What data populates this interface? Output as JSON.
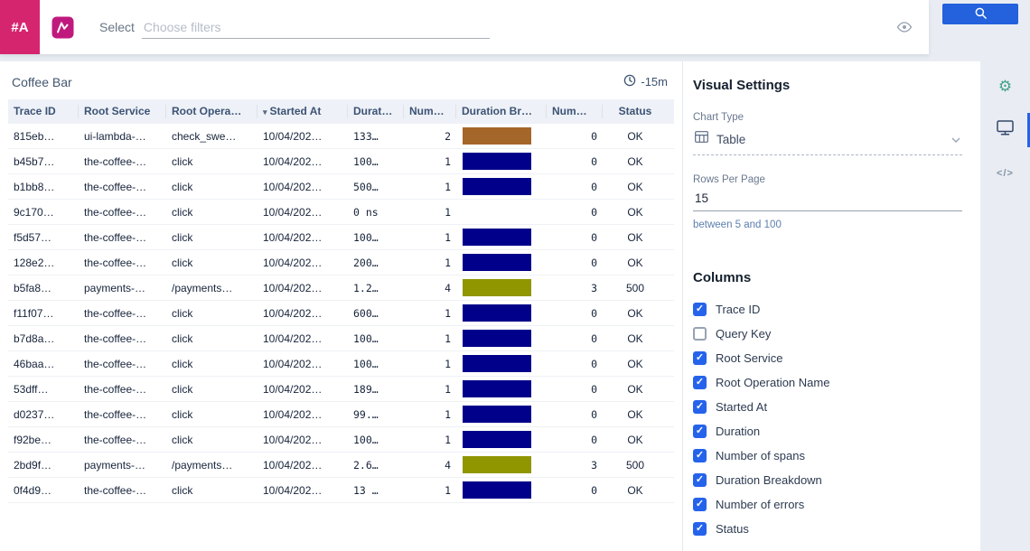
{
  "topbar": {
    "brand": "#A",
    "select_label": "Select",
    "filter_placeholder": "Choose filters"
  },
  "panel": {
    "title": "Coffee Bar",
    "time_range": "-15m"
  },
  "table": {
    "columns": [
      "Trace ID",
      "Root Service",
      "Root Opera…",
      "Started At",
      "Durat…",
      "Num…",
      "Duration Br…",
      "Num…",
      "Status"
    ],
    "rows": [
      {
        "trace_id": "815eb…",
        "root_service": "ui-lambda-…",
        "root_operation": "check_swe…",
        "started_at": "10/04/202…",
        "duration": "133…",
        "num_spans": "2",
        "bar": {
          "color": "#a5662a",
          "width_pct": 88
        },
        "num_errors": "0",
        "status": "OK"
      },
      {
        "trace_id": "b45b7…",
        "root_service": "the-coffee-…",
        "root_operation": "click",
        "started_at": "10/04/202…",
        "duration": "100…",
        "num_spans": "1",
        "bar": {
          "color": "#00008b",
          "width_pct": 88
        },
        "num_errors": "0",
        "status": "OK"
      },
      {
        "trace_id": "b1bb8…",
        "root_service": "the-coffee-…",
        "root_operation": "click",
        "started_at": "10/04/202…",
        "duration": "500…",
        "num_spans": "1",
        "bar": {
          "color": "#00008b",
          "width_pct": 88
        },
        "num_errors": "0",
        "status": "OK"
      },
      {
        "trace_id": "9c170…",
        "root_service": "the-coffee-…",
        "root_operation": "click",
        "started_at": "10/04/202…",
        "duration": "0 ns",
        "num_spans": "1",
        "bar": {
          "color": "",
          "width_pct": 0
        },
        "num_errors": "0",
        "status": "OK"
      },
      {
        "trace_id": "f5d57…",
        "root_service": "the-coffee-…",
        "root_operation": "click",
        "started_at": "10/04/202…",
        "duration": "100…",
        "num_spans": "1",
        "bar": {
          "color": "#00008b",
          "width_pct": 88
        },
        "num_errors": "0",
        "status": "OK"
      },
      {
        "trace_id": "128e2…",
        "root_service": "the-coffee-…",
        "root_operation": "click",
        "started_at": "10/04/202…",
        "duration": "200…",
        "num_spans": "1",
        "bar": {
          "color": "#00008b",
          "width_pct": 88
        },
        "num_errors": "0",
        "status": "OK"
      },
      {
        "trace_id": "b5fa8…",
        "root_service": "payments-…",
        "root_operation": "/payments…",
        "started_at": "10/04/202…",
        "duration": "1.2…",
        "num_spans": "4",
        "bar": {
          "color": "#8f9600",
          "width_pct": 88
        },
        "num_errors": "3",
        "status": "500"
      },
      {
        "trace_id": "f11f07…",
        "root_service": "the-coffee-…",
        "root_operation": "click",
        "started_at": "10/04/202…",
        "duration": "600…",
        "num_spans": "1",
        "bar": {
          "color": "#00008b",
          "width_pct": 88
        },
        "num_errors": "0",
        "status": "OK"
      },
      {
        "trace_id": "b7d8a…",
        "root_service": "the-coffee-…",
        "root_operation": "click",
        "started_at": "10/04/202…",
        "duration": "100…",
        "num_spans": "1",
        "bar": {
          "color": "#00008b",
          "width_pct": 88
        },
        "num_errors": "0",
        "status": "OK"
      },
      {
        "trace_id": "46baa…",
        "root_service": "the-coffee-…",
        "root_operation": "click",
        "started_at": "10/04/202…",
        "duration": "100…",
        "num_spans": "1",
        "bar": {
          "color": "#00008b",
          "width_pct": 88
        },
        "num_errors": "0",
        "status": "OK"
      },
      {
        "trace_id": "53dff…",
        "root_service": "the-coffee-…",
        "root_operation": "click",
        "started_at": "10/04/202…",
        "duration": "189…",
        "num_spans": "1",
        "bar": {
          "color": "#00008b",
          "width_pct": 88
        },
        "num_errors": "0",
        "status": "OK"
      },
      {
        "trace_id": "d0237…",
        "root_service": "the-coffee-…",
        "root_operation": "click",
        "started_at": "10/04/202…",
        "duration": "99.…",
        "num_spans": "1",
        "bar": {
          "color": "#00008b",
          "width_pct": 88
        },
        "num_errors": "0",
        "status": "OK"
      },
      {
        "trace_id": "f92be…",
        "root_service": "the-coffee-…",
        "root_operation": "click",
        "started_at": "10/04/202…",
        "duration": "100…",
        "num_spans": "1",
        "bar": {
          "color": "#00008b",
          "width_pct": 88
        },
        "num_errors": "0",
        "status": "OK"
      },
      {
        "trace_id": "2bd9f…",
        "root_service": "payments-…",
        "root_operation": "/payments…",
        "started_at": "10/04/202…",
        "duration": "2.6…",
        "num_spans": "4",
        "bar": {
          "color": "#8f9600",
          "width_pct": 88
        },
        "num_errors": "3",
        "status": "500"
      },
      {
        "trace_id": "0f4d9…",
        "root_service": "the-coffee-…",
        "root_operation": "click",
        "started_at": "10/04/202…",
        "duration": "13 …",
        "num_spans": "1",
        "bar": {
          "color": "#00008b",
          "width_pct": 88
        },
        "num_errors": "0",
        "status": "OK"
      }
    ]
  },
  "settings": {
    "title": "Visual Settings",
    "chart_type": {
      "label": "Chart Type",
      "value": "Table"
    },
    "rows_per_page": {
      "label": "Rows Per Page",
      "value": "15",
      "hint": "between 5 and 100"
    },
    "columns_section": {
      "title": "Columns",
      "items": [
        {
          "label": "Trace ID",
          "checked": true
        },
        {
          "label": "Query Key",
          "checked": false
        },
        {
          "label": "Root Service",
          "checked": true
        },
        {
          "label": "Root Operation Name",
          "checked": true
        },
        {
          "label": "Started At",
          "checked": true
        },
        {
          "label": "Duration",
          "checked": true
        },
        {
          "label": "Number of spans",
          "checked": true
        },
        {
          "label": "Duration Breakdown",
          "checked": true
        },
        {
          "label": "Number of errors",
          "checked": true
        },
        {
          "label": "Status",
          "checked": true
        }
      ]
    }
  },
  "icons": {
    "check": "✓",
    "gear": "⚙",
    "code": "</>",
    "caret_down": "▾"
  },
  "colors": {
    "accent_blue": "#2563eb",
    "brand_pink": "#d6256f",
    "bar_navy": "#00008b",
    "bar_brown": "#a5662a",
    "bar_olive": "#8f9600",
    "gear_teal": "#45a18e"
  }
}
